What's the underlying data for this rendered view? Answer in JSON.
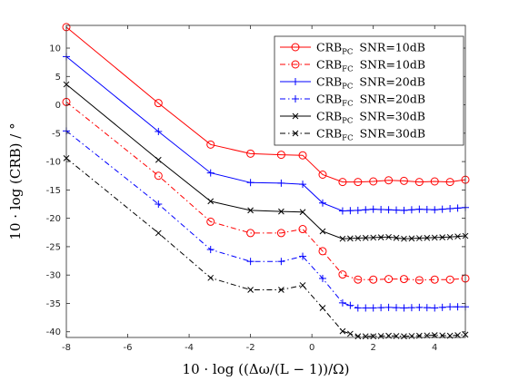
{
  "chart_data": {
    "type": "line",
    "title": "",
    "xlabel": "10 · log ((Δω/(L − 1))/Ω)",
    "ylabel": "10 · log (CRB) / °",
    "xlim": [
      -8,
      5
    ],
    "ylim": [
      -41,
      14
    ],
    "grid": false,
    "legend_position": "top-right",
    "x_ticks": [
      -8,
      -6,
      -4,
      -2,
      0,
      2,
      4
    ],
    "x_tick_labels": [
      "-8",
      "-6",
      "-4",
      "-2",
      "0",
      "2",
      "4"
    ],
    "y_ticks": [
      10,
      5,
      0,
      -5,
      -10,
      -15,
      -20,
      -25,
      -30,
      -35,
      -40
    ],
    "y_tick_labels": [
      "10",
      "5",
      "0",
      "-5",
      "-10",
      "-15",
      "-20",
      "-25",
      "-30",
      "-35",
      "-40"
    ],
    "series": [
      {
        "name": "CRB_PC SNR=10dB",
        "label_main": "CRB",
        "label_sub": "PC",
        "label_snr": "SNR=10dB",
        "color": "#ff0000",
        "dash": "solid",
        "marker": "circle",
        "marker_mode": "sparse",
        "points": [
          [
            -8,
            13.7
          ],
          [
            -5,
            0.3
          ],
          [
            -3.3,
            -7.0
          ],
          [
            -2,
            -8.6
          ],
          [
            -1,
            -8.8
          ],
          [
            -0.3,
            -8.9
          ],
          [
            0.35,
            -12.3
          ],
          [
            1,
            -13.6
          ],
          [
            1.5,
            -13.6
          ],
          [
            2,
            -13.5
          ],
          [
            2.5,
            -13.3
          ],
          [
            3,
            -13.4
          ],
          [
            3.5,
            -13.6
          ],
          [
            4,
            -13.5
          ],
          [
            4.5,
            -13.6
          ],
          [
            5,
            -13.2
          ]
        ]
      },
      {
        "name": "CRB_FC SNR=10dB",
        "label_main": "CRB",
        "label_sub": "FC",
        "label_snr": "SNR=10dB",
        "color": "#ff0000",
        "dash": "dashdot",
        "marker": "circle",
        "marker_mode": "sparse",
        "points": [
          [
            -8,
            0.5
          ],
          [
            -5,
            -12.5
          ],
          [
            -3.3,
            -20.6
          ],
          [
            -2,
            -22.6
          ],
          [
            -1,
            -22.6
          ],
          [
            -0.3,
            -21.9
          ],
          [
            0.35,
            -25.8
          ],
          [
            1,
            -29.9
          ],
          [
            1.5,
            -30.8
          ],
          [
            2,
            -30.8
          ],
          [
            2.5,
            -30.7
          ],
          [
            3,
            -30.7
          ],
          [
            3.5,
            -30.9
          ],
          [
            4,
            -30.8
          ],
          [
            4.5,
            -30.8
          ],
          [
            5,
            -30.6
          ]
        ]
      },
      {
        "name": "CRB_PC SNR=20dB",
        "label_main": "CRB",
        "label_sub": "PC",
        "label_snr": "SNR=20dB",
        "color": "#0000ff",
        "dash": "solid",
        "marker": "plus",
        "marker_mode": "dense",
        "points": [
          [
            -8,
            8.5
          ],
          [
            -5,
            -4.7
          ],
          [
            -3.3,
            -12.0
          ],
          [
            -2,
            -13.7
          ],
          [
            -1,
            -13.8
          ],
          [
            -0.3,
            -14.0
          ],
          [
            0.35,
            -17.3
          ],
          [
            1,
            -18.7
          ],
          [
            1.5,
            -18.6
          ],
          [
            2,
            -18.4
          ],
          [
            2.5,
            -18.5
          ],
          [
            3,
            -18.6
          ],
          [
            3.5,
            -18.4
          ],
          [
            4,
            -18.5
          ],
          [
            4.5,
            -18.3
          ],
          [
            5,
            -18.1
          ]
        ]
      },
      {
        "name": "CRB_FC SNR=20dB",
        "label_main": "CRB",
        "label_sub": "FC",
        "label_snr": "SNR=20dB",
        "color": "#0000ff",
        "dash": "dashdot",
        "marker": "plus",
        "marker_mode": "dense",
        "points": [
          [
            -8,
            -4.6
          ],
          [
            -5,
            -17.5
          ],
          [
            -3.3,
            -25.5
          ],
          [
            -2,
            -27.6
          ],
          [
            -1,
            -27.6
          ],
          [
            -0.3,
            -26.7
          ],
          [
            0.35,
            -30.6
          ],
          [
            1,
            -34.9
          ],
          [
            1.5,
            -35.8
          ],
          [
            2,
            -35.8
          ],
          [
            2.5,
            -35.7
          ],
          [
            3,
            -35.8
          ],
          [
            3.5,
            -35.7
          ],
          [
            4,
            -35.8
          ],
          [
            4.5,
            -35.6
          ],
          [
            5,
            -35.6
          ]
        ]
      },
      {
        "name": "CRB_PC SNR=30dB",
        "label_main": "CRB",
        "label_sub": "PC",
        "label_snr": "SNR=30dB",
        "color": "#000000",
        "dash": "solid",
        "marker": "cross",
        "marker_mode": "dense",
        "points": [
          [
            -8,
            3.6
          ],
          [
            -5,
            -9.7
          ],
          [
            -3.3,
            -17.0
          ],
          [
            -2,
            -18.6
          ],
          [
            -1,
            -18.8
          ],
          [
            -0.3,
            -18.9
          ],
          [
            0.35,
            -22.3
          ],
          [
            1,
            -23.6
          ],
          [
            1.5,
            -23.5
          ],
          [
            2,
            -23.4
          ],
          [
            2.5,
            -23.3
          ],
          [
            3,
            -23.6
          ],
          [
            3.5,
            -23.5
          ],
          [
            4,
            -23.4
          ],
          [
            4.5,
            -23.3
          ],
          [
            5,
            -23.1
          ]
        ]
      },
      {
        "name": "CRB_FC SNR=30dB",
        "label_main": "CRB",
        "label_sub": "FC",
        "label_snr": "SNR=30dB",
        "color": "#000000",
        "dash": "dashdot",
        "marker": "cross",
        "marker_mode": "dense",
        "points": [
          [
            -8,
            -9.4
          ],
          [
            -5,
            -22.6
          ],
          [
            -3.3,
            -30.5
          ],
          [
            -2,
            -32.6
          ],
          [
            -1,
            -32.6
          ],
          [
            -0.3,
            -31.8
          ],
          [
            0.35,
            -35.8
          ],
          [
            1,
            -39.9
          ],
          [
            1.5,
            -40.8
          ],
          [
            2,
            -40.8
          ],
          [
            2.5,
            -40.7
          ],
          [
            3,
            -40.8
          ],
          [
            3.5,
            -40.7
          ],
          [
            4,
            -40.6
          ],
          [
            4.5,
            -40.7
          ],
          [
            5,
            -40.5
          ]
        ]
      }
    ]
  }
}
